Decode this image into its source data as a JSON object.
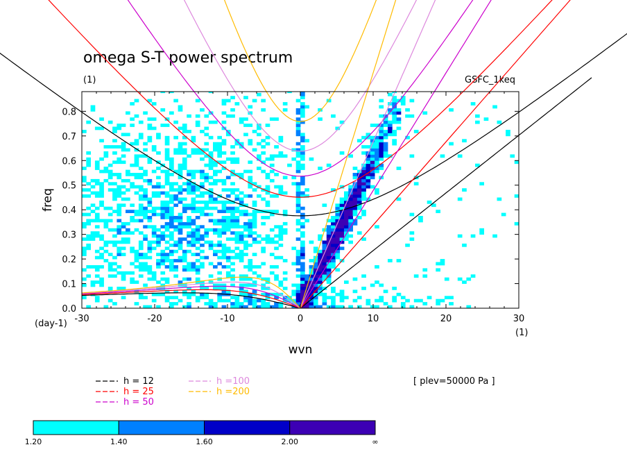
{
  "chart_data": {
    "type": "heatmap",
    "title": "omega S-T power spectrum",
    "subtitle": "(1)",
    "source_label": "GSFC_1keq",
    "xlabel": "wvn",
    "ylabel": "freq",
    "x_units": "(1)",
    "y_units": "(day-1)",
    "xlim": [
      -30,
      30
    ],
    "ylim": [
      0,
      0.88
    ],
    "x_ticks": [
      -30,
      -20,
      -10,
      0,
      10,
      20,
      30
    ],
    "x_tick_labels": [
      "-30",
      "-20",
      "-10",
      "0",
      "10",
      "20",
      "30"
    ],
    "y_ticks": [
      0,
      0.1,
      0.2,
      0.3,
      0.4,
      0.5,
      0.6,
      0.7,
      0.8
    ],
    "y_tick_labels": [
      "0.0",
      "0.1",
      "0.2",
      "0.3",
      "0.4",
      "0.5",
      "0.6",
      "0.7",
      "0.8"
    ],
    "annotation": "[ plev=50000 Pa ]",
    "contour_levels": [
      "1.20",
      "1.40",
      "1.60",
      "2.00",
      "∞"
    ],
    "level_colors": [
      "#00ffff",
      "#0080ff",
      "#0000c8",
      "#3c00b4"
    ],
    "series": [
      {
        "name": "h = 12",
        "h": 12,
        "color": "#000000"
      },
      {
        "name": "h = 25",
        "h": 25,
        "color": "#ff0000"
      },
      {
        "name": "h = 50",
        "h": 50,
        "color": "#cc00cc"
      },
      {
        "name": "h =100",
        "h": 100,
        "color": "#dd88dd"
      },
      {
        "name": "h =200",
        "h": 200,
        "color": "#ffbb00"
      }
    ],
    "dispersion_curves": [
      "kelvin",
      "equatorial-rossby",
      "inertio-gravity"
    ],
    "grid": false,
    "legend_placement": "bottom-left"
  }
}
